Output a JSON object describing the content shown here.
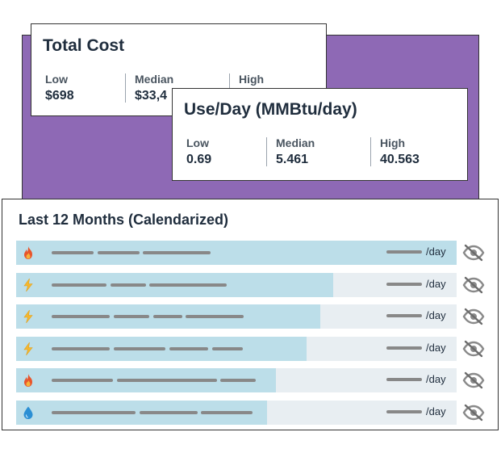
{
  "total_cost": {
    "title": "Total Cost",
    "stats": [
      {
        "label": "Low",
        "value": "$698"
      },
      {
        "label": "Median",
        "value": "$33,4"
      },
      {
        "label": "High",
        "value": ""
      }
    ]
  },
  "use_day": {
    "title": "Use/Day (MMBtu/day)",
    "stats": [
      {
        "label": "Low",
        "value": "0.69"
      },
      {
        "label": "Median",
        "value": "5.461"
      },
      {
        "label": "High",
        "value": "40.563"
      }
    ]
  },
  "last12": {
    "title": "Last 12 Months (Calendarized)",
    "rows": [
      {
        "icon": "flame-icon",
        "fill_fraction": 1.0,
        "per_day": "/day"
      },
      {
        "icon": "lightning-icon",
        "fill_fraction": 0.72,
        "per_day": "/day"
      },
      {
        "icon": "lightning-icon",
        "fill_fraction": 0.69,
        "per_day": "/day"
      },
      {
        "icon": "lightning-icon",
        "fill_fraction": 0.66,
        "per_day": "/day"
      },
      {
        "icon": "flame-icon",
        "fill_fraction": 0.59,
        "per_day": "/day"
      },
      {
        "icon": "water-drop-icon",
        "fill_fraction": 0.57,
        "per_day": "/day"
      }
    ]
  },
  "colors": {
    "purple": "#8e69b5",
    "bar_fill": "#bcdee9",
    "bar_bg": "#e8eef2"
  }
}
